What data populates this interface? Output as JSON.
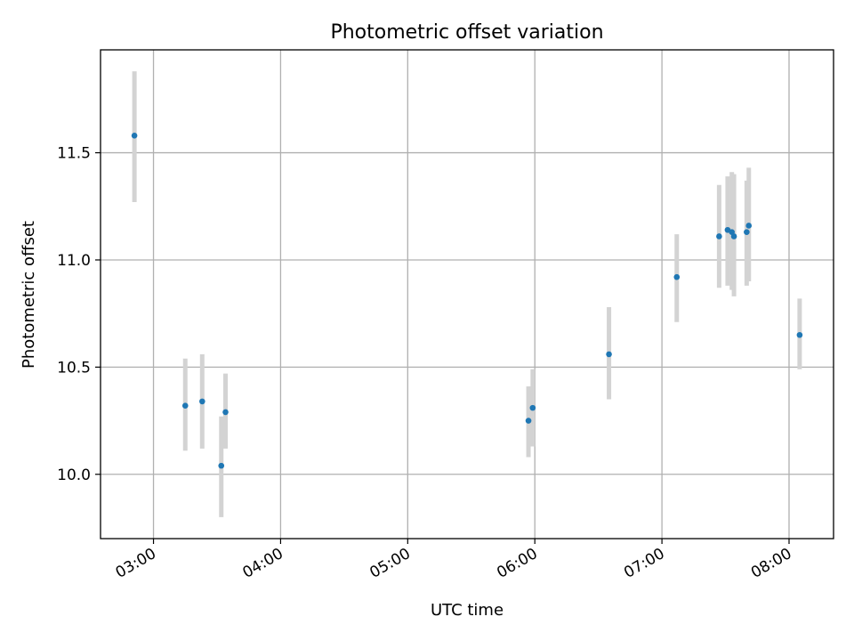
{
  "chart_data": {
    "type": "scatter",
    "title": "Photometric offset variation",
    "xlabel": "UTC time",
    "ylabel": "Photometric offset",
    "x_ticks": [
      "03:00",
      "04:00",
      "05:00",
      "06:00",
      "07:00",
      "08:00"
    ],
    "y_ticks": [
      "10.0",
      "10.5",
      "11.0",
      "11.5"
    ],
    "xlim": [
      "02:35",
      "08:21"
    ],
    "ylim": [
      9.7,
      11.98
    ],
    "grid": true,
    "marker_color": "#1f77b4",
    "errorbar_color": "#d3d3d3",
    "points": [
      {
        "x": "02:51",
        "y": 11.58,
        "y_low": 11.27,
        "y_high": 11.88
      },
      {
        "x": "03:15",
        "y": 10.32,
        "y_low": 10.11,
        "y_high": 10.54
      },
      {
        "x": "03:23",
        "y": 10.34,
        "y_low": 10.12,
        "y_high": 10.56
      },
      {
        "x": "03:32",
        "y": 10.04,
        "y_low": 9.8,
        "y_high": 10.27
      },
      {
        "x": "03:34",
        "y": 10.29,
        "y_low": 10.12,
        "y_high": 10.47
      },
      {
        "x": "05:57",
        "y": 10.25,
        "y_low": 10.08,
        "y_high": 10.41
      },
      {
        "x": "05:59",
        "y": 10.31,
        "y_low": 10.13,
        "y_high": 10.49
      },
      {
        "x": "06:35",
        "y": 10.56,
        "y_low": 10.35,
        "y_high": 10.78
      },
      {
        "x": "07:07",
        "y": 10.92,
        "y_low": 10.71,
        "y_high": 11.12
      },
      {
        "x": "07:27",
        "y": 11.11,
        "y_low": 10.87,
        "y_high": 11.35
      },
      {
        "x": "07:31",
        "y": 11.14,
        "y_low": 10.88,
        "y_high": 11.39
      },
      {
        "x": "07:33",
        "y": 11.13,
        "y_low": 10.86,
        "y_high": 11.41
      },
      {
        "x": "07:34",
        "y": 11.11,
        "y_low": 10.83,
        "y_high": 11.4
      },
      {
        "x": "07:40",
        "y": 11.13,
        "y_low": 10.88,
        "y_high": 11.37
      },
      {
        "x": "07:41",
        "y": 11.16,
        "y_low": 10.9,
        "y_high": 11.43
      },
      {
        "x": "08:05",
        "y": 10.65,
        "y_low": 10.49,
        "y_high": 10.82
      }
    ]
  }
}
